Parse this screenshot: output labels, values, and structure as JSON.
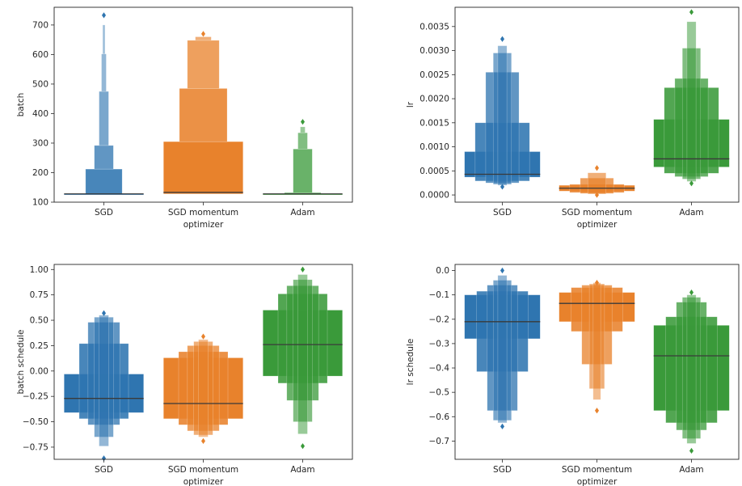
{
  "chart_data": [
    {
      "type": "boxen",
      "xlabel": "optimizer",
      "ylabel": "batch",
      "categories": [
        "SGD",
        "SGD momentum",
        "Adam"
      ],
      "ylim": [
        100,
        760
      ],
      "yticks": [
        100,
        200,
        300,
        400,
        500,
        600,
        700
      ],
      "ytick_labels": [
        "100",
        "200",
        "300",
        "400",
        "500",
        "600",
        "700"
      ],
      "series": [
        {
          "median": 128,
          "boxes": [
            [
              128,
              128,
              1.0
            ],
            [
              128,
              212,
              0.46
            ],
            [
              212,
              292,
              0.24
            ],
            [
              292,
              475,
              0.12
            ],
            [
              475,
              602,
              0.06
            ],
            [
              602,
              700,
              0.03
            ]
          ],
          "outliers": [
            733
          ]
        },
        {
          "median": 133,
          "boxes": [
            [
              128,
              305,
              1.0
            ],
            [
              305,
              485,
              0.6
            ],
            [
              485,
              648,
              0.4
            ],
            [
              648,
              660,
              0.2
            ]
          ],
          "outliers": [
            670
          ]
        },
        {
          "median": 128,
          "boxes": [
            [
              128,
              128,
              1.0
            ],
            [
              128,
              132,
              0.46
            ],
            [
              132,
              280,
              0.24
            ],
            [
              280,
              335,
              0.12
            ],
            [
              335,
              355,
              0.06
            ]
          ],
          "outliers": [
            372
          ]
        }
      ]
    },
    {
      "type": "boxen",
      "xlabel": "optimizer",
      "ylabel": "lr",
      "categories": [
        "SGD",
        "SGD momentum",
        "Adam"
      ],
      "ylim": [
        -0.00015,
        0.0039
      ],
      "yticks": [
        0.0,
        0.0005,
        0.001,
        0.0015,
        0.002,
        0.0025,
        0.003,
        0.0035
      ],
      "ytick_labels": [
        "0.0000",
        "0.0005",
        "0.0010",
        "0.0015",
        "0.0020",
        "0.0025",
        "0.0030",
        "0.0035"
      ],
      "series": [
        {
          "median": 0.00043,
          "boxes": [
            [
              0.00037,
              0.0009,
              1.0
            ],
            [
              0.00029,
              0.0015,
              0.72
            ],
            [
              0.00025,
              0.00255,
              0.44
            ],
            [
              0.00022,
              0.00295,
              0.24
            ],
            [
              0.0002,
              0.0031,
              0.12
            ]
          ],
          "outliers": [
            0.00017,
            0.00324
          ]
        },
        {
          "median": 0.00014,
          "boxes": [
            [
              8e-05,
              0.0002,
              1.0
            ],
            [
              5e-05,
              0.00022,
              0.72
            ],
            [
              3e-05,
              0.00035,
              0.44
            ],
            [
              2e-05,
              0.00046,
              0.24
            ]
          ],
          "outliers": [
            0.0,
            0.00056
          ]
        },
        {
          "median": 0.00075,
          "boxes": [
            [
              0.00058,
              0.00157,
              1.0
            ],
            [
              0.00045,
              0.00223,
              0.72
            ],
            [
              0.00038,
              0.00242,
              0.44
            ],
            [
              0.00033,
              0.00305,
              0.24
            ],
            [
              0.00028,
              0.0036,
              0.12
            ]
          ],
          "outliers": [
            0.00024,
            0.0038
          ]
        }
      ]
    },
    {
      "type": "boxen",
      "xlabel": "optimizer",
      "ylabel": "batch schedule",
      "categories": [
        "SGD",
        "SGD momentum",
        "Adam"
      ],
      "ylim": [
        -0.87,
        1.05
      ],
      "yticks": [
        -0.75,
        -0.5,
        -0.25,
        0.0,
        0.25,
        0.5,
        0.75,
        1.0
      ],
      "ytick_labels": [
        "−0.75",
        "−0.50",
        "−0.25",
        "0.00",
        "0.25",
        "0.50",
        "0.75",
        "1.00"
      ],
      "series": [
        {
          "median": -0.27,
          "boxes": [
            [
              -0.41,
              -0.03,
              1.0
            ],
            [
              -0.47,
              0.27,
              0.62
            ],
            [
              -0.53,
              0.48,
              0.4
            ],
            [
              -0.65,
              0.53,
              0.24
            ],
            [
              -0.74,
              0.55,
              0.12
            ]
          ],
          "outliers": [
            -0.86,
            0.57
          ]
        },
        {
          "median": -0.32,
          "boxes": [
            [
              -0.47,
              0.13,
              1.0
            ],
            [
              -0.53,
              0.19,
              0.62
            ],
            [
              -0.59,
              0.25,
              0.4
            ],
            [
              -0.63,
              0.29,
              0.24
            ],
            [
              -0.65,
              0.31,
              0.12
            ]
          ],
          "outliers": [
            -0.69,
            0.34
          ]
        },
        {
          "median": 0.26,
          "boxes": [
            [
              -0.05,
              0.6,
              1.0
            ],
            [
              -0.12,
              0.76,
              0.62
            ],
            [
              -0.29,
              0.84,
              0.4
            ],
            [
              -0.5,
              0.9,
              0.24
            ],
            [
              -0.62,
              0.95,
              0.12
            ]
          ],
          "outliers": [
            -0.74,
            1.0
          ]
        }
      ]
    },
    {
      "type": "boxen",
      "xlabel": "optimizer",
      "ylabel": "lr schedule",
      "categories": [
        "SGD",
        "SGD momentum",
        "Adam"
      ],
      "ylim": [
        -0.775,
        0.025
      ],
      "yticks": [
        -0.7,
        -0.6,
        -0.5,
        -0.4,
        -0.3,
        -0.2,
        -0.1,
        0.0
      ],
      "ytick_labels": [
        "−0.7",
        "−0.6",
        "−0.5",
        "−0.4",
        "−0.3",
        "−0.2",
        "−0.1",
        "0.0"
      ],
      "series": [
        {
          "median": -0.21,
          "boxes": [
            [
              -0.28,
              -0.1,
              1.0
            ],
            [
              -0.415,
              -0.085,
              0.68
            ],
            [
              -0.575,
              -0.06,
              0.4
            ],
            [
              -0.615,
              -0.04,
              0.24
            ],
            [
              -0.625,
              -0.02,
              0.12
            ]
          ],
          "outliers": [
            -0.64,
            0.0
          ]
        },
        {
          "median": -0.135,
          "boxes": [
            [
              -0.21,
              -0.09,
              1.0
            ],
            [
              -0.25,
              -0.07,
              0.68
            ],
            [
              -0.385,
              -0.06,
              0.4
            ],
            [
              -0.485,
              -0.055,
              0.2
            ],
            [
              -0.53,
              -0.05,
              0.1
            ]
          ],
          "outliers": [
            -0.575,
            -0.05
          ]
        },
        {
          "median": -0.35,
          "boxes": [
            [
              -0.575,
              -0.225,
              1.0
            ],
            [
              -0.625,
              -0.19,
              0.68
            ],
            [
              -0.655,
              -0.13,
              0.4
            ],
            [
              -0.69,
              -0.11,
              0.24
            ],
            [
              -0.71,
              -0.1,
              0.12
            ]
          ],
          "outliers": [
            -0.74,
            -0.09
          ]
        }
      ]
    }
  ],
  "palette": {
    "sgd": "#2f75b0",
    "sgd_momentum": "#e8822c",
    "adam": "#3a9a3a",
    "median_line": "#3a3a3a",
    "axis": "#262626"
  }
}
